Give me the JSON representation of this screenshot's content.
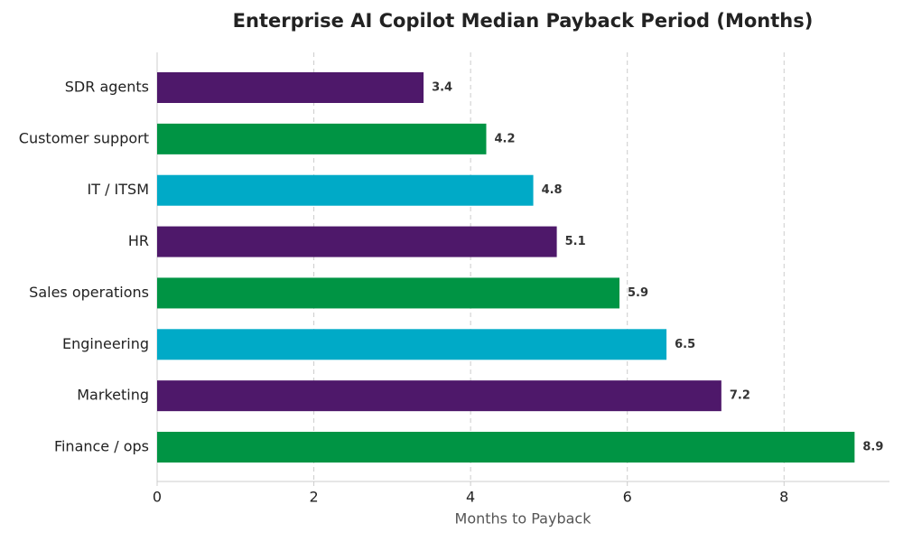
{
  "chart_data": {
    "type": "barh",
    "title": "Enterprise AI Copilot Median Payback Period (Months)",
    "x_label": "Months to Payback",
    "categories": [
      "SDR agents",
      "Customer support",
      "IT / ITSM",
      "HR",
      "Sales operations",
      "Engineering",
      "Marketing",
      "Finance / ops"
    ],
    "values": [
      3.4,
      4.2,
      4.8,
      5.1,
      5.9,
      6.5,
      7.2,
      8.9
    ],
    "colors": [
      "#4e186a",
      "#009444",
      "#00aac7",
      "#4e186a",
      "#009444",
      "#00aac7",
      "#4e186a",
      "#009444"
    ],
    "xlim": [
      0,
      9.345
    ],
    "xticks": [
      0,
      2,
      4,
      6,
      8
    ],
    "grid": true
  }
}
